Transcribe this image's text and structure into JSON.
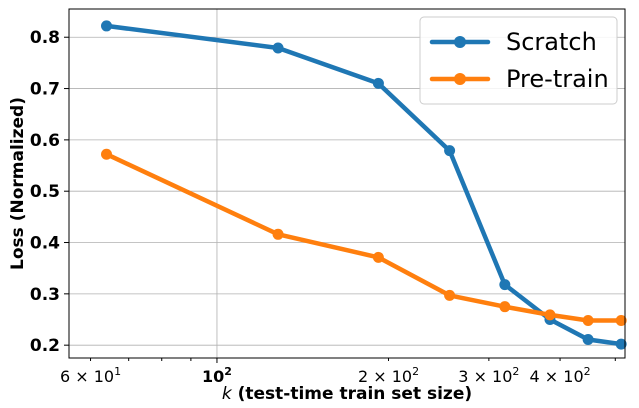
{
  "chart_data": {
    "type": "line",
    "xscale": "log",
    "xlabel_italic": "k",
    "xlabel_rest": "(test-time train set size)",
    "ylabel": "Loss (Normalized)",
    "xlim": [
      55,
      520
    ],
    "ylim": [
      0.175,
      0.855
    ],
    "grid": true,
    "legend_position": "top-right",
    "yticks": [
      {
        "value": 0.2,
        "label": "0.2"
      },
      {
        "value": 0.3,
        "label": "0.3"
      },
      {
        "value": 0.4,
        "label": "0.4"
      },
      {
        "value": 0.5,
        "label": "0.5"
      },
      {
        "value": 0.6,
        "label": "0.6"
      },
      {
        "value": 0.7,
        "label": "0.7"
      },
      {
        "value": 0.8,
        "label": "0.8"
      }
    ],
    "xticks": [
      {
        "value": 60,
        "base": "6 × 10",
        "exp": "1",
        "bold": false
      },
      {
        "value": 100,
        "base": "10",
        "exp": "2",
        "bold": true
      },
      {
        "value": 200,
        "base": "2 × 10",
        "exp": "2",
        "bold": false
      },
      {
        "value": 300,
        "base": "3 × 10",
        "exp": "2",
        "bold": false
      },
      {
        "value": 400,
        "base": "4 × 10",
        "exp": "2",
        "bold": false
      }
    ],
    "xgrid_major": [
      100
    ],
    "series": [
      {
        "name": "Scratch",
        "color": "#1f77b4",
        "x": [
          64,
          128,
          192,
          256,
          320,
          384,
          448,
          512
        ],
        "y": [
          0.822,
          0.779,
          0.71,
          0.579,
          0.318,
          0.25,
          0.211,
          0.202
        ]
      },
      {
        "name": "Pre-train",
        "color": "#ff7f0e",
        "x": [
          64,
          128,
          192,
          256,
          320,
          384,
          448,
          512
        ],
        "y": [
          0.572,
          0.416,
          0.371,
          0.297,
          0.275,
          0.259,
          0.248,
          0.248
        ]
      }
    ]
  }
}
